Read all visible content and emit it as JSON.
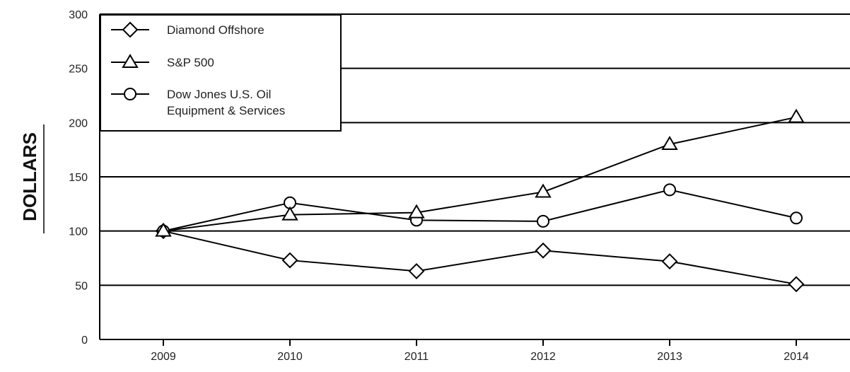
{
  "chart_data": {
    "type": "line",
    "ylabel": "DOLLARS",
    "xlabel": "",
    "title": "",
    "categories": [
      "2009",
      "2010",
      "2011",
      "2012",
      "2013",
      "2014"
    ],
    "ylim": [
      0,
      300
    ],
    "yticks": [
      0,
      50,
      100,
      150,
      200,
      250,
      300
    ],
    "grid": true,
    "legend_position": "top-left",
    "series": [
      {
        "name": "Diamond Offshore",
        "marker": "diamond",
        "values": [
          100,
          73,
          63,
          82,
          72,
          51
        ]
      },
      {
        "name": "S&P 500",
        "marker": "triangle",
        "values": [
          100,
          115,
          117,
          136,
          180,
          205
        ]
      },
      {
        "name": "Dow Jones U.S. Oil Equipment & Services",
        "marker": "circle",
        "name_lines": [
          "Dow Jones U.S. Oil",
          "Equipment & Services"
        ],
        "values": [
          100,
          126,
          110,
          109,
          138,
          112
        ]
      }
    ],
    "colors": {
      "line": "#000000",
      "marker_fill": "#ffffff"
    }
  }
}
